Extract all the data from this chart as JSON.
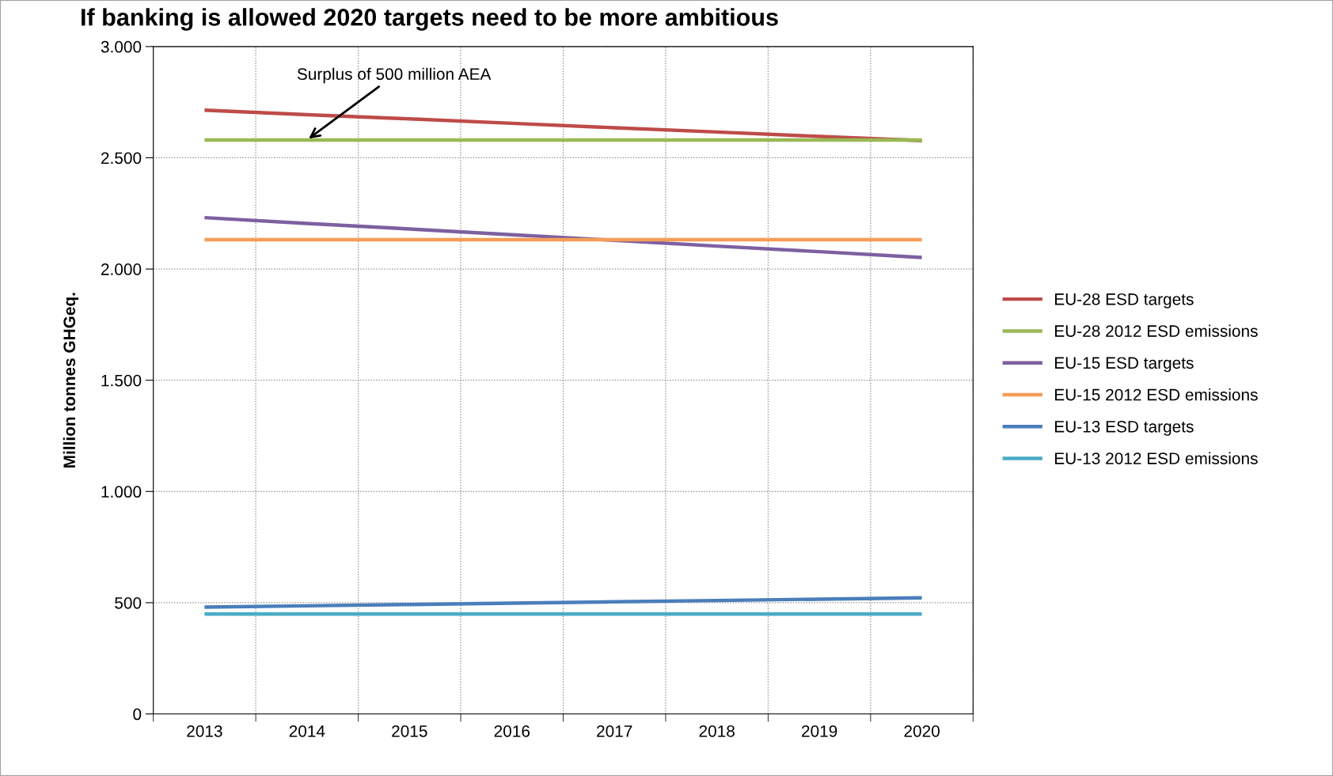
{
  "chart_data": {
    "type": "line",
    "title": "If banking is allowed 2020 targets need to be more ambitious",
    "ylabel": "Million tonnes GHGeq.",
    "categories": [
      "2013",
      "2014",
      "2015",
      "2016",
      "2017",
      "2018",
      "2019",
      "2020"
    ],
    "series": [
      {
        "name": "EU-28 ESD targets",
        "color": "#be4b48",
        "values": [
          2714,
          2694,
          2675,
          2655,
          2635,
          2616,
          2596,
          2577
        ]
      },
      {
        "name": "EU-28 2012 ESD emissions",
        "color": "#98b954",
        "values": [
          2580,
          2580,
          2580,
          2580,
          2580,
          2580,
          2580,
          2580
        ]
      },
      {
        "name": "EU-15 ESD targets",
        "color": "#7d60a0",
        "values": [
          2231,
          2205,
          2180,
          2154,
          2129,
          2103,
          2078,
          2052
        ]
      },
      {
        "name": "EU-15 2012 ESD emissions",
        "color": "#f59d56",
        "values": [
          2132,
          2132,
          2132,
          2132,
          2132,
          2132,
          2132,
          2132
        ]
      },
      {
        "name": "EU-13 ESD targets",
        "color": "#4a7ebb",
        "values": [
          480,
          486,
          492,
          498,
          504,
          510,
          516,
          522
        ]
      },
      {
        "name": "EU-13 2012 ESD emissions",
        "color": "#4bacc6",
        "values": [
          449,
          449,
          449,
          449,
          449,
          449,
          449,
          449
        ]
      }
    ],
    "ylim": [
      0,
      3000
    ],
    "yticks": [
      0,
      500,
      {
        "value": 1000,
        "label": "1.000"
      },
      {
        "value": 1500,
        "label": "1.500"
      },
      {
        "value": 2000,
        "label": "2.000"
      },
      {
        "value": 2500,
        "label": "2.500"
      },
      {
        "value": 3000,
        "label": "3.000"
      }
    ],
    "annotations": [
      {
        "text": "Surplus of 500 million AEA",
        "x": "2014",
        "y": 2580
      }
    ],
    "grid": true,
    "legend": "right",
    "marker": "none",
    "line_style": "solid"
  }
}
